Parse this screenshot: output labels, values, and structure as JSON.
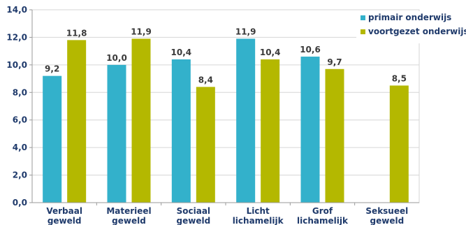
{
  "chart_data": {
    "type": "bar",
    "categories": [
      [
        "Verbaal",
        "geweld"
      ],
      [
        "Materieel",
        "geweld"
      ],
      [
        "Sociaal",
        "geweld"
      ],
      [
        "Licht",
        "lichamelijk"
      ],
      [
        "Grof",
        "lichamelijk"
      ],
      [
        "Seksueel",
        "geweld"
      ]
    ],
    "series": [
      {
        "name": "primair onderwijs",
        "color": "#33b1cb",
        "values": [
          9.2,
          10.0,
          10.4,
          11.9,
          10.6,
          null
        ],
        "labels": [
          "9,2",
          "10,0",
          "10,4",
          "11,9",
          "10,6",
          ""
        ]
      },
      {
        "name": "voortgezet onderwijs",
        "color": "#b4b800",
        "values": [
          11.8,
          11.9,
          8.4,
          10.4,
          9.7,
          8.5
        ],
        "labels": [
          "11,8",
          "11,9",
          "8,4",
          "10,4",
          "9,7",
          "8,5"
        ]
      }
    ],
    "yticks": [
      "0,0",
      "2,0",
      "4,0",
      "6,0",
      "8,0",
      "10,0",
      "12,0",
      "14,0"
    ],
    "ylim": [
      0,
      14
    ],
    "grid": true,
    "legend": "top-right",
    "xlabel": "",
    "ylabel": "",
    "title": ""
  }
}
